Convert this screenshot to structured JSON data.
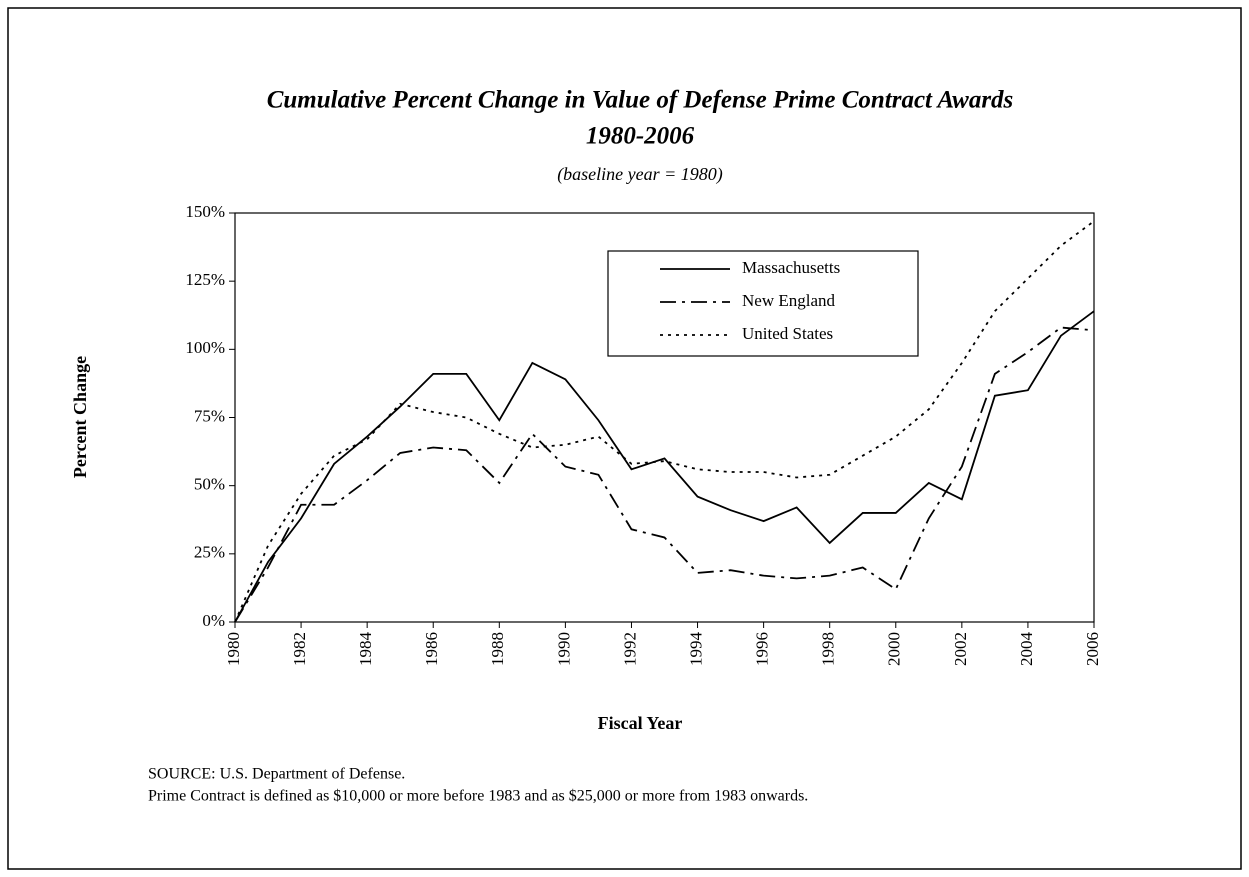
{
  "chart_data": {
    "type": "line",
    "title": [
      "Cumulative Percent Change in Value of Defense Prime Contract Awards",
      "1980-2006"
    ],
    "subtitle": "(baseline year = 1980)",
    "y_label": "Percent Change",
    "x_label": "Fiscal Year",
    "notes": [
      "SOURCE: U.S. Department of Defense.",
      "Prime Contract is defined as $10,000 or more before 1983 and as $25,000 or more from 1983 onwards."
    ],
    "x": [
      1980,
      1981,
      1982,
      1983,
      1984,
      1985,
      1986,
      1987,
      1988,
      1989,
      1990,
      1991,
      1992,
      1993,
      1994,
      1995,
      1996,
      1997,
      1998,
      1999,
      2000,
      2001,
      2002,
      2003,
      2004,
      2005,
      2006
    ],
    "series": [
      {
        "name": "Massachusetts",
        "color": "#000000",
        "dash": "solid",
        "values": [
          0,
          22,
          38,
          58,
          68,
          79,
          91,
          91,
          74,
          95,
          89,
          74,
          56,
          60,
          46,
          41,
          37,
          42,
          29,
          40,
          40,
          51,
          45,
          83,
          85,
          105,
          114
        ]
      },
      {
        "name": "New England",
        "color": "#000000",
        "dash": "dash-dot",
        "values": [
          0,
          20,
          43,
          43,
          52,
          62,
          64,
          63,
          51,
          69,
          57,
          54,
          34,
          31,
          18,
          19,
          17,
          16,
          17,
          20,
          12,
          38,
          57,
          91,
          99,
          108,
          107
        ]
      },
      {
        "name": "United States",
        "color": "#000000",
        "dash": "dot",
        "values": [
          0,
          28,
          47,
          61,
          67,
          80,
          77,
          75,
          69,
          64,
          65,
          68,
          58,
          59,
          56,
          55,
          55,
          53,
          54,
          61,
          68,
          78,
          95,
          114,
          126,
          138,
          147
        ]
      }
    ],
    "xlim": [
      1980,
      2006
    ],
    "xticks": [
      1980,
      1982,
      1984,
      1986,
      1988,
      1990,
      1992,
      1994,
      1996,
      1998,
      2000,
      2002,
      2004,
      2006
    ],
    "ylim": [
      0,
      150
    ],
    "yticks": [
      {
        "value": 0,
        "label": "0%"
      },
      {
        "value": 25,
        "label": "25%"
      },
      {
        "value": 50,
        "label": "50%"
      },
      {
        "value": 75,
        "label": "75%"
      },
      {
        "value": 100,
        "label": "100%"
      },
      {
        "value": 125,
        "label": "125%"
      },
      {
        "value": 150,
        "label": "150%"
      }
    ],
    "grid": false,
    "legend": "top-center"
  }
}
